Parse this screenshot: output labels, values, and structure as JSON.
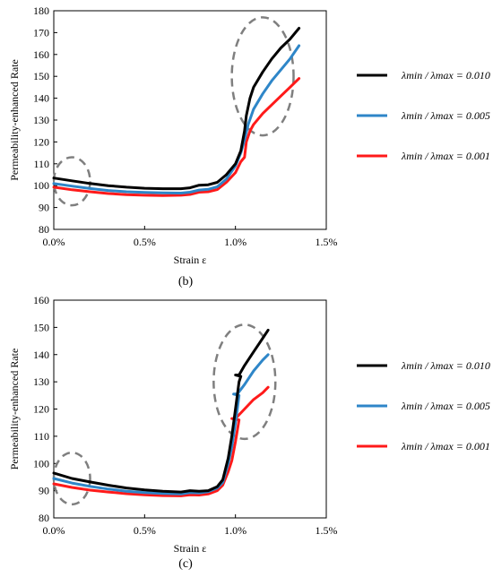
{
  "chart_data": [
    {
      "type": "line",
      "panel_label": "(b)",
      "xlabel": "Strain ε",
      "ylabel": "Permeability-enhanced Rate",
      "xlim": [
        0,
        1.5
      ],
      "ylim": [
        80,
        180
      ],
      "x_ticks": [
        0,
        0.5,
        1.0,
        1.5
      ],
      "x_tick_labels": [
        "0.0%",
        "0.5%",
        "1.0%",
        "1.5%"
      ],
      "y_ticks": [
        80,
        90,
        100,
        110,
        120,
        130,
        140,
        150,
        160,
        170,
        180
      ],
      "y_tick_labels": [
        "80",
        "90",
        "100",
        "110",
        "120",
        "130",
        "140",
        "150",
        "160",
        "170",
        "180"
      ],
      "grid": false,
      "legend_position": "right",
      "highlight_circles": [
        {
          "cx": 0.1,
          "cy": 102,
          "rx": 0.1,
          "ry": 11
        },
        {
          "cx": 1.15,
          "cy": 150,
          "rx": 0.17,
          "ry": 27
        }
      ],
      "series": [
        {
          "name": "λmin / λmax = 0.010",
          "color": "#000000",
          "points": [
            [
              0,
              103.5
            ],
            [
              0.1,
              102.2
            ],
            [
              0.2,
              101
            ],
            [
              0.3,
              100
            ],
            [
              0.4,
              99.3
            ],
            [
              0.5,
              98.8
            ],
            [
              0.6,
              98.6
            ],
            [
              0.7,
              98.6
            ],
            [
              0.75,
              99
            ],
            [
              0.8,
              100.2
            ],
            [
              0.85,
              100.4
            ],
            [
              0.9,
              101.5
            ],
            [
              0.95,
              105
            ],
            [
              1.0,
              110
            ],
            [
              1.03,
              116
            ],
            [
              1.05,
              125
            ],
            [
              1.06,
              132
            ],
            [
              1.08,
              140
            ],
            [
              1.1,
              145
            ],
            [
              1.15,
              152
            ],
            [
              1.2,
              158
            ],
            [
              1.25,
              163
            ],
            [
              1.3,
              167
            ],
            [
              1.35,
              172
            ]
          ]
        },
        {
          "name": "λmin / λmax = 0.005",
          "color": "#2e86c8",
          "points": [
            [
              0,
              101
            ],
            [
              0.1,
              99.8
            ],
            [
              0.2,
              98.7
            ],
            [
              0.3,
              97.8
            ],
            [
              0.4,
              97.2
            ],
            [
              0.5,
              96.9
            ],
            [
              0.6,
              96.7
            ],
            [
              0.7,
              96.6
            ],
            [
              0.75,
              97
            ],
            [
              0.8,
              98
            ],
            [
              0.85,
              98.3
            ],
            [
              0.9,
              99.5
            ],
            [
              0.95,
              103
            ],
            [
              1.0,
              109
            ],
            [
              1.03,
              115
            ],
            [
              1.05,
              121
            ],
            [
              1.07,
              128
            ],
            [
              1.1,
              135
            ],
            [
              1.15,
              142
            ],
            [
              1.2,
              148
            ],
            [
              1.25,
              153
            ],
            [
              1.3,
              158
            ],
            [
              1.35,
              164
            ]
          ]
        },
        {
          "name": "λmin / λmax = 0.001",
          "color": "#ff1a1a",
          "points": [
            [
              0,
              99.3
            ],
            [
              0.1,
              98.1
            ],
            [
              0.2,
              97.2
            ],
            [
              0.3,
              96.4
            ],
            [
              0.4,
              95.9
            ],
            [
              0.5,
              95.6
            ],
            [
              0.6,
              95.5
            ],
            [
              0.7,
              95.6
            ],
            [
              0.75,
              96
            ],
            [
              0.8,
              97
            ],
            [
              0.85,
              97.2
            ],
            [
              0.9,
              98.2
            ],
            [
              0.95,
              101.5
            ],
            [
              1.0,
              106
            ],
            [
              1.03,
              111
            ],
            [
              1.05,
              113
            ],
            [
              1.06,
              120
            ],
            [
              1.08,
              125
            ],
            [
              1.1,
              128
            ],
            [
              1.15,
              133
            ],
            [
              1.2,
              137
            ],
            [
              1.25,
              141
            ],
            [
              1.3,
              145
            ],
            [
              1.35,
              149
            ]
          ]
        }
      ]
    },
    {
      "type": "line",
      "panel_label": "(c)",
      "xlabel": "Strain ε",
      "ylabel": "Permeability-enhanced Rate",
      "xlim": [
        0,
        1.5
      ],
      "ylim": [
        80,
        160
      ],
      "x_ticks": [
        0,
        0.5,
        1.0,
        1.5
      ],
      "x_tick_labels": [
        "0.0%",
        "0.5%",
        "1.0%",
        "1.5%"
      ],
      "y_ticks": [
        80,
        90,
        100,
        110,
        120,
        130,
        140,
        150,
        160
      ],
      "y_tick_labels": [
        "80",
        "90",
        "100",
        "110",
        "120",
        "130",
        "140",
        "150",
        "160"
      ],
      "grid": false,
      "legend_position": "right",
      "highlight_circles": [
        {
          "cx": 0.1,
          "cy": 94.5,
          "rx": 0.1,
          "ry": 9.5
        },
        {
          "cx": 1.05,
          "cy": 130,
          "rx": 0.17,
          "ry": 21
        }
      ],
      "series": [
        {
          "name": "λmin / λmax = 0.010",
          "color": "#000000",
          "points": [
            [
              0,
              96.5
            ],
            [
              0.1,
              94.5
            ],
            [
              0.2,
              93.2
            ],
            [
              0.3,
              92
            ],
            [
              0.4,
              91
            ],
            [
              0.5,
              90.3
            ],
            [
              0.6,
              89.8
            ],
            [
              0.7,
              89.5
            ],
            [
              0.75,
              90
            ],
            [
              0.8,
              89.8
            ],
            [
              0.85,
              90
            ],
            [
              0.9,
              91.5
            ],
            [
              0.93,
              94
            ],
            [
              0.96,
              102
            ],
            [
              0.98,
              110
            ],
            [
              1.0,
              120
            ],
            [
              1.02,
              130
            ],
            [
              1.03,
              132
            ],
            [
              1.0,
              132.5
            ],
            [
              1.02,
              132.5
            ],
            [
              1.05,
              136
            ],
            [
              1.1,
              141
            ],
            [
              1.15,
              146
            ],
            [
              1.18,
              149
            ]
          ]
        },
        {
          "name": "λmin / λmax = 0.005",
          "color": "#2e86c8",
          "points": [
            [
              0,
              94.5
            ],
            [
              0.1,
              92.8
            ],
            [
              0.2,
              91.6
            ],
            [
              0.3,
              90.6
            ],
            [
              0.4,
              89.8
            ],
            [
              0.5,
              89.3
            ],
            [
              0.6,
              89
            ],
            [
              0.7,
              88.8
            ],
            [
              0.75,
              89.3
            ],
            [
              0.8,
              89.2
            ],
            [
              0.85,
              89.6
            ],
            [
              0.9,
              91
            ],
            [
              0.93,
              93
            ],
            [
              0.96,
              100
            ],
            [
              0.98,
              106
            ],
            [
              1.0,
              115
            ],
            [
              1.01,
              120
            ],
            [
              1.02,
              125
            ],
            [
              0.99,
              125.5
            ],
            [
              1.01,
              125.5
            ],
            [
              1.05,
              129
            ],
            [
              1.1,
              134
            ],
            [
              1.15,
              138
            ],
            [
              1.18,
              140
            ]
          ]
        },
        {
          "name": "λmin / λmax = 0.001",
          "color": "#ff1a1a",
          "points": [
            [
              0,
              92.5
            ],
            [
              0.1,
              91.2
            ],
            [
              0.2,
              90.2
            ],
            [
              0.3,
              89.5
            ],
            [
              0.4,
              88.9
            ],
            [
              0.5,
              88.5
            ],
            [
              0.6,
              88.2
            ],
            [
              0.7,
              88.1
            ],
            [
              0.75,
              88.5
            ],
            [
              0.8,
              88.4
            ],
            [
              0.85,
              88.8
            ],
            [
              0.9,
              90
            ],
            [
              0.93,
              92
            ],
            [
              0.96,
              97
            ],
            [
              0.98,
              101
            ],
            [
              1.0,
              108
            ],
            [
              1.01,
              112
            ],
            [
              1.02,
              116
            ],
            [
              0.98,
              116.5
            ],
            [
              1.0,
              116.5
            ],
            [
              1.05,
              120
            ],
            [
              1.1,
              123.5
            ],
            [
              1.15,
              126
            ],
            [
              1.18,
              128
            ]
          ]
        }
      ]
    }
  ]
}
